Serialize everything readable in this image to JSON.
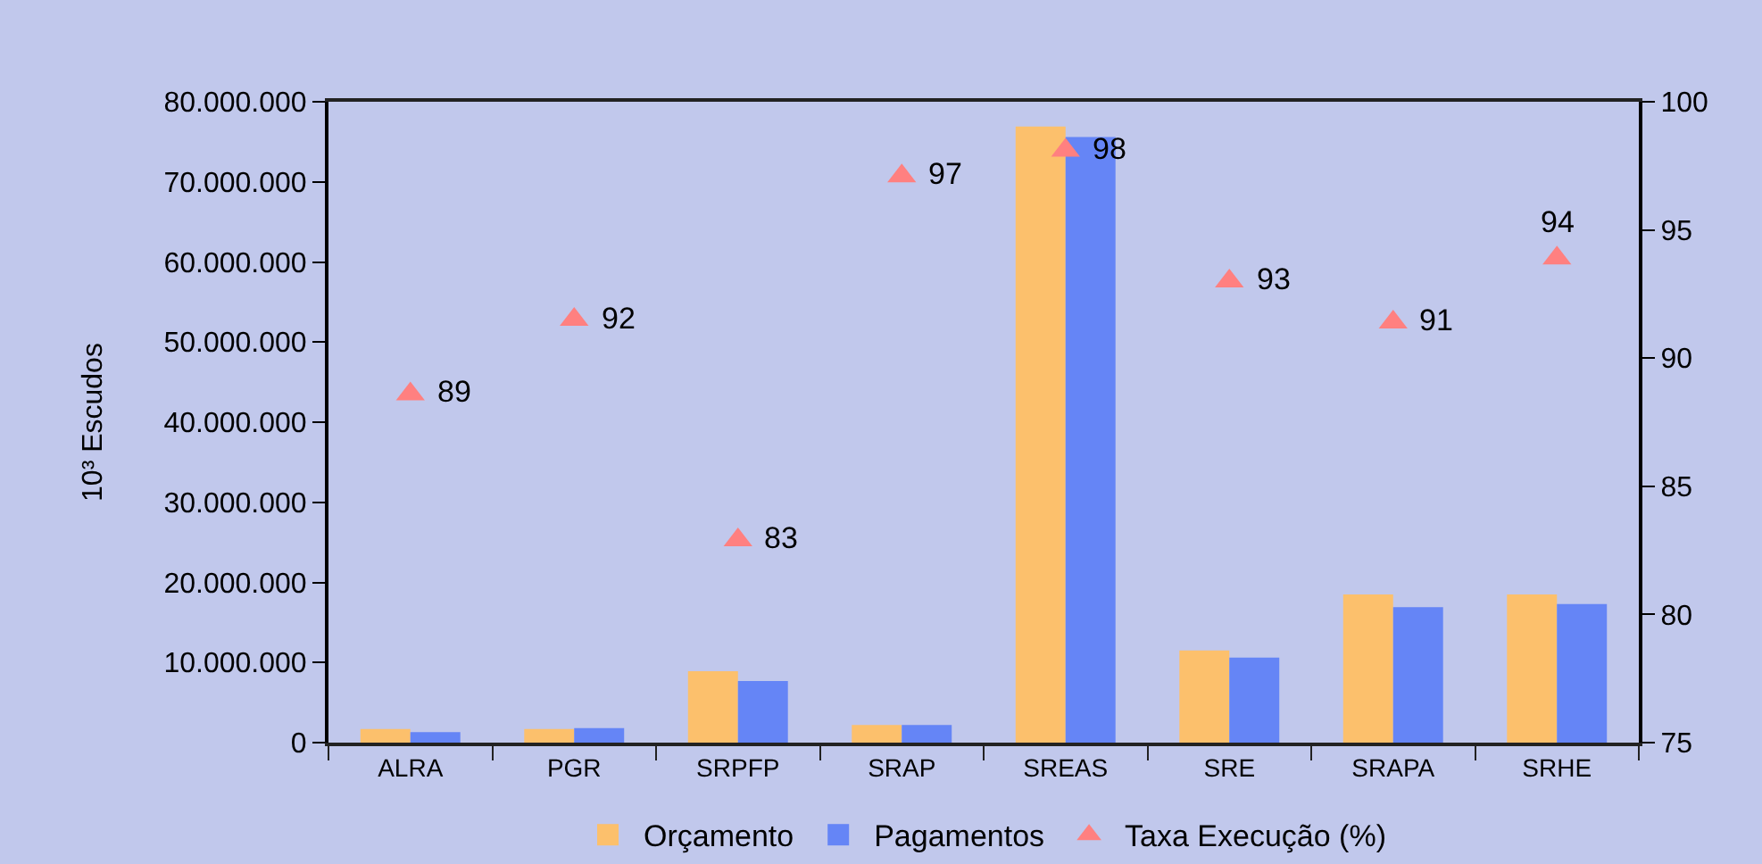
{
  "chart_data": {
    "type": "bar",
    "ylabel": "10³ Escudos",
    "categories": [
      "ALRA",
      "PGR",
      "SRPFP",
      "SRAP",
      "SREAS",
      "SRE",
      "SRAPA",
      "SRHE"
    ],
    "series": [
      {
        "name": "Orçamento",
        "color": "#fcc06c",
        "values": [
          1700000,
          1700000,
          8900000,
          2200000,
          76900000,
          11500000,
          18500000,
          18500000
        ]
      },
      {
        "name": "Pagamentos",
        "color": "#6585f6",
        "values": [
          1300000,
          1800000,
          7700000,
          2200000,
          75600000,
          10600000,
          16900000,
          17300000
        ]
      },
      {
        "name": "Taxa Execução (%)",
        "type": "scatter",
        "axis": "y2",
        "color": "#ff8080",
        "values": [
          88.6,
          91.5,
          82.9,
          97.1,
          98.1,
          93.0,
          91.4,
          93.9
        ],
        "value_labels": [
          "89",
          "92",
          "83",
          "97",
          "98",
          "93",
          "91",
          "94"
        ]
      }
    ],
    "ylim": [
      0,
      80000000
    ],
    "yticks": [
      0,
      {
        "value": 10000000,
        "label": "10.000.000"
      },
      {
        "value": 20000000,
        "label": "20.000.000"
      },
      {
        "value": 30000000,
        "label": "30.000.000"
      },
      {
        "value": 40000000,
        "label": "40.000.000"
      },
      {
        "value": 50000000,
        "label": "50.000.000"
      },
      {
        "value": 60000000,
        "label": "60.000.000"
      },
      {
        "value": 70000000,
        "label": "70.000.000"
      },
      {
        "value": 80000000,
        "label": "80.000.000"
      }
    ],
    "y2lim": [
      75,
      100
    ],
    "y2ticks": [
      75,
      80,
      85,
      90,
      95,
      100
    ],
    "legend": "bottom",
    "marker": "triangle",
    "grid": false
  }
}
